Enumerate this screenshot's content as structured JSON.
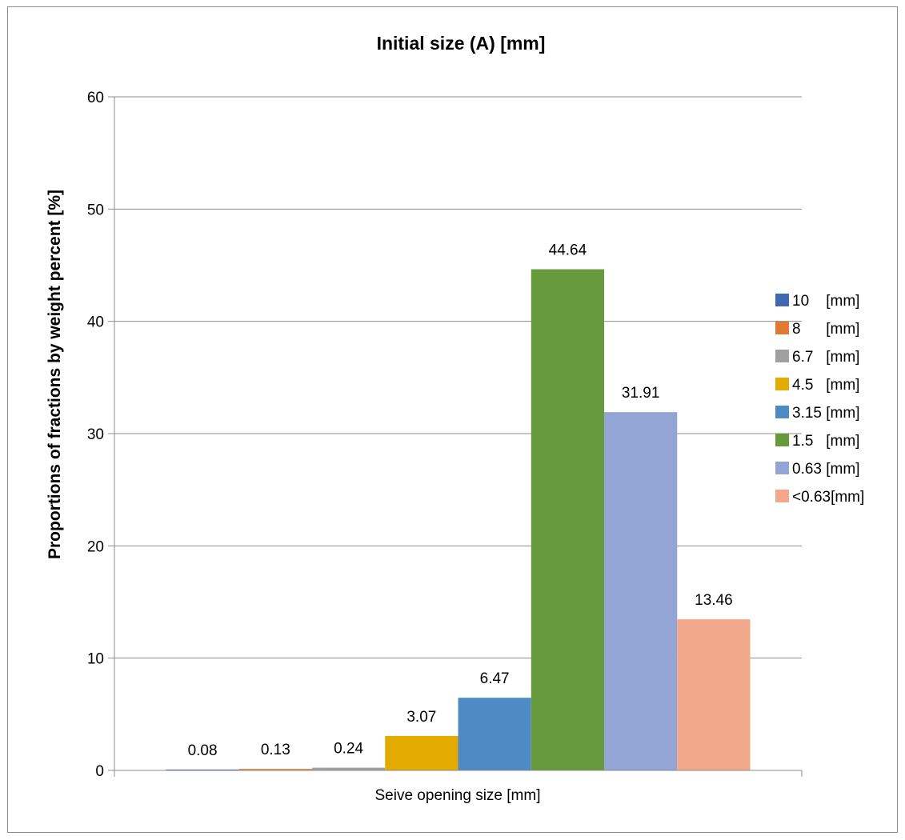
{
  "chart_data": {
    "type": "bar",
    "title": "Initial size (A) [mm]",
    "xlabel": "Seive opening size [mm]",
    "ylabel": "Proportions of fractions by weight percent [%]",
    "ylim": [
      0,
      60
    ],
    "yticks": [
      0,
      10,
      20,
      30,
      40,
      50,
      60
    ],
    "grid": true,
    "legend_position": "right",
    "series": [
      {
        "name": "10    [mm]",
        "value": 0.08,
        "label": "0.08",
        "color": "#4169b1"
      },
      {
        "name": "8      [mm]",
        "value": 0.13,
        "label": "0.13",
        "color": "#e07a32"
      },
      {
        "name": "6.7   [mm]",
        "value": 0.24,
        "label": "0.24",
        "color": "#a0a0a0"
      },
      {
        "name": "4.5   [mm]",
        "value": 3.07,
        "label": "3.07",
        "color": "#e3aa00"
      },
      {
        "name": "3.15 [mm]",
        "value": 6.47,
        "label": "6.47",
        "color": "#4e8ac4"
      },
      {
        "name": "1.5   [mm]",
        "value": 44.64,
        "label": "44.64",
        "color": "#669a3d"
      },
      {
        "name": "0.63 [mm]",
        "value": 31.91,
        "label": "31.91",
        "color": "#92a5d5"
      },
      {
        "name": "<0.63[mm]",
        "value": 13.46,
        "label": "13.46",
        "color": "#f2a98b"
      }
    ]
  }
}
